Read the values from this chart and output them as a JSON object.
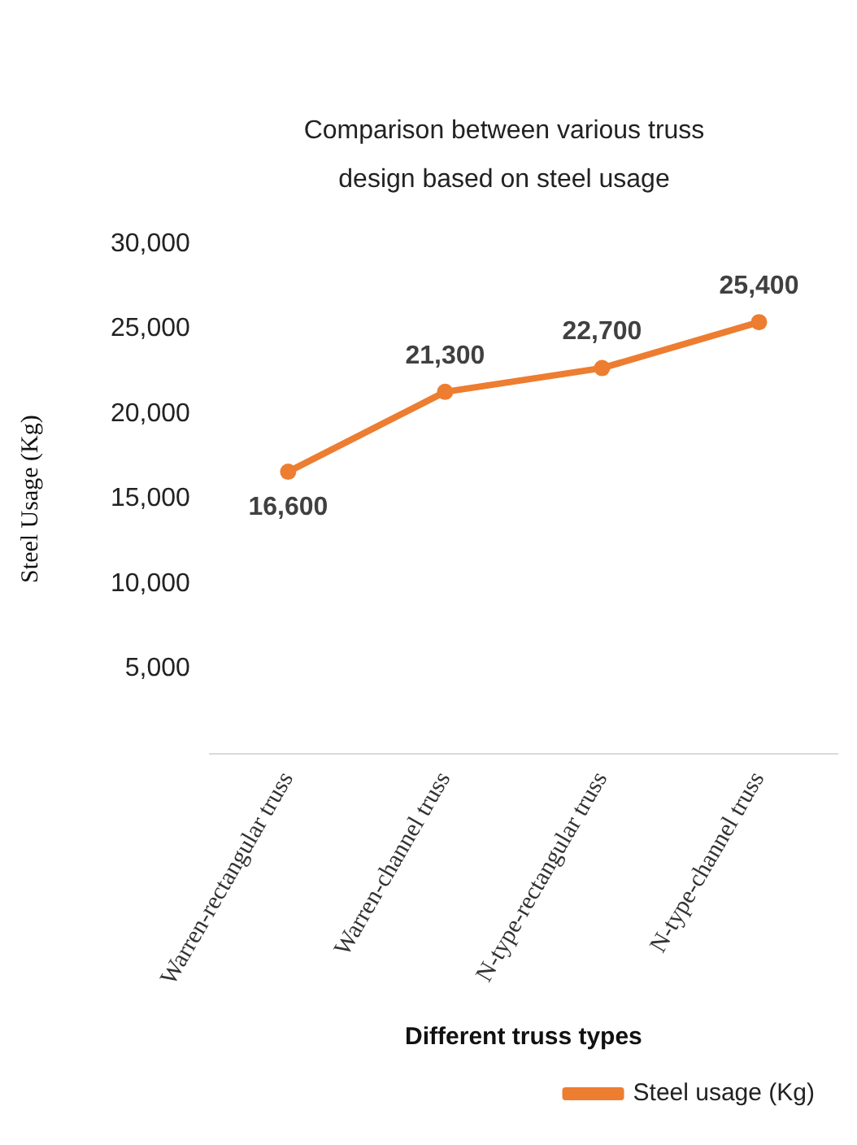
{
  "chart_data": {
    "type": "line",
    "title": "Comparison between various truss design based on steel usage",
    "xlabel": "Different truss types",
    "ylabel": "Steel Usage (Kg)",
    "categories": [
      "Warren-rectangular truss",
      "Warren-channel truss",
      "N-type-rectangular truss",
      "N-type-channel truss"
    ],
    "series": [
      {
        "name": "Steel usage (Kg)",
        "color": "#ed7d31",
        "values": [
          16600,
          21300,
          22700,
          25400
        ],
        "value_labels": [
          "16,600",
          "21,300",
          "22,700",
          "25,400"
        ]
      }
    ],
    "ylim": [
      0,
      30000
    ],
    "yticks": [
      {
        "value": 5000,
        "label": "5,000"
      },
      {
        "value": 10000,
        "label": "10,000"
      },
      {
        "value": 15000,
        "label": "15,000"
      },
      {
        "value": 20000,
        "label": "20,000"
      },
      {
        "value": 25000,
        "label": "25,000"
      },
      {
        "value": 30000,
        "label": "30,000"
      }
    ],
    "grid": false,
    "legend": "bottom right",
    "marker": "circle",
    "line_style": "solid"
  }
}
